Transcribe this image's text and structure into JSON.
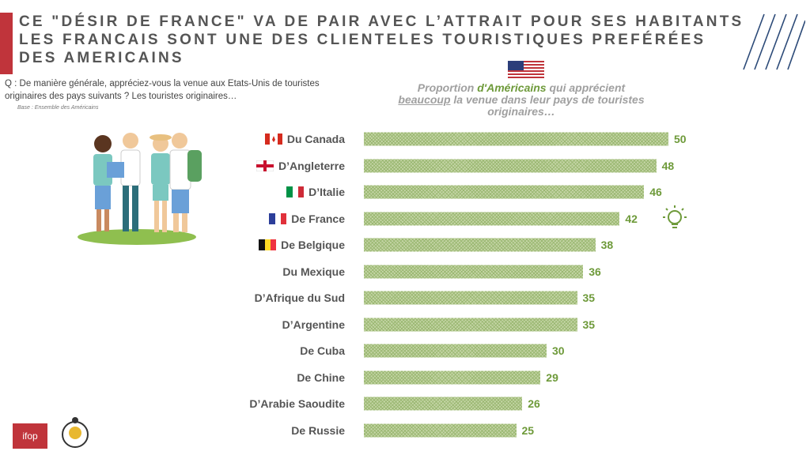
{
  "title_lines": [
    "CE \"DÉSIR DE FRANCE\" VA DE PAIR AVEC L’ATTRAIT POUR SES HABITANTS",
    "LES FRANCAIS SONT UNE DES CLIENTELES TOURISTIQUES PREFÉRÉES",
    "DES AMERICAINS"
  ],
  "question": "Q : De manière générale, appréciez-vous la venue aux Etats-Unis de touristes originaires des pays suivants ? Les touristes originaires…",
  "base": "Base : Ensemble des Américains",
  "subtitle": {
    "part1": "Proportion ",
    "highlight": "d'Américains",
    "part2": " qui apprécient ",
    "underlined": "beaucoup",
    "part3": " la venue dans leur pays de touristes originaires…"
  },
  "logos": {
    "ifop": "ifop"
  },
  "colors": {
    "bar": "#9bb872",
    "value": "#6e9a3a",
    "accent": "#c0343b"
  },
  "chart_data": {
    "type": "bar",
    "orientation": "horizontal",
    "categories": [
      "Du Canada",
      "D’Angleterre",
      "D’Italie",
      "De France",
      "De Belgique",
      "Du Mexique",
      "D’Afrique du Sud",
      "D’Argentine",
      "De Cuba",
      "De Chine",
      "D’Arabie Saoudite",
      "De Russie"
    ],
    "values": [
      50,
      48,
      46,
      42,
      38,
      36,
      35,
      35,
      30,
      29,
      26,
      25
    ],
    "flags": [
      "canada",
      "england",
      "italy",
      "france",
      "belgium",
      "",
      "",
      "",
      "",
      "",
      "",
      ""
    ],
    "xlim": [
      0,
      50
    ],
    "grid": false,
    "highlight": "De France"
  }
}
